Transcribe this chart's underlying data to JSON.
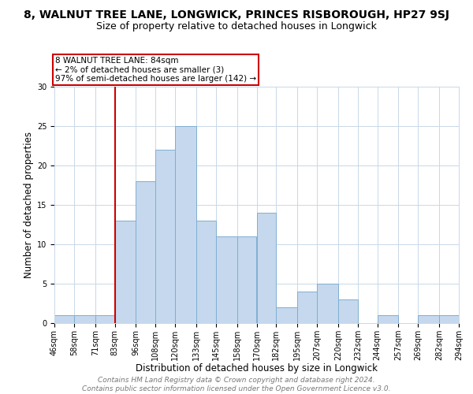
{
  "title": "8, WALNUT TREE LANE, LONGWICK, PRINCES RISBOROUGH, HP27 9SJ",
  "subtitle": "Size of property relative to detached houses in Longwick",
  "xlabel": "Distribution of detached houses by size in Longwick",
  "ylabel": "Number of detached properties",
  "bin_edges": [
    46,
    58,
    71,
    83,
    96,
    108,
    120,
    133,
    145,
    158,
    170,
    182,
    195,
    207,
    220,
    232,
    244,
    257,
    269,
    282,
    294
  ],
  "bar_heights": [
    1,
    1,
    1,
    13,
    18,
    22,
    25,
    13,
    11,
    11,
    14,
    2,
    4,
    5,
    3,
    0,
    1,
    0,
    1,
    1
  ],
  "bar_color": "#c5d8ed",
  "bar_edge_color": "#7fafd1",
  "ylim": [
    0,
    30
  ],
  "yticks": [
    0,
    5,
    10,
    15,
    20,
    25,
    30
  ],
  "property_line_x": 83,
  "property_line_color": "#cc0000",
  "annotation_text": "8 WALNUT TREE LANE: 84sqm\n← 2% of detached houses are smaller (3)\n97% of semi-detached houses are larger (142) →",
  "annotation_box_color": "#ffffff",
  "annotation_box_edge_color": "#cc0000",
  "footer_line1": "Contains HM Land Registry data © Crown copyright and database right 2024.",
  "footer_line2": "Contains public sector information licensed under the Open Government Licence v3.0.",
  "background_color": "#ffffff",
  "grid_color": "#c8d8e8",
  "title_fontsize": 10,
  "subtitle_fontsize": 9,
  "xlabel_fontsize": 8.5,
  "ylabel_fontsize": 8.5,
  "tick_fontsize": 7,
  "footer_fontsize": 6.5,
  "annot_fontsize": 7.5
}
